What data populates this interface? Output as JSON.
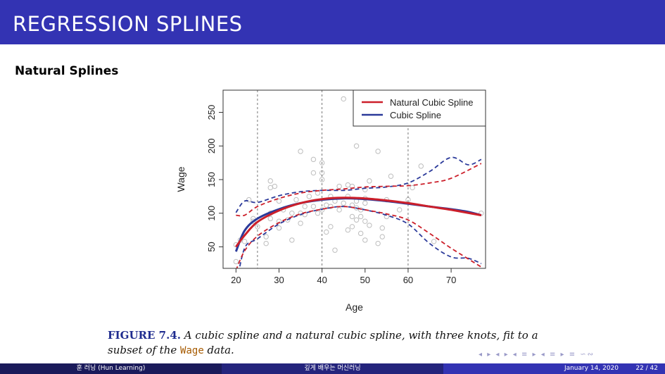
{
  "header": {
    "title": "REGRESSION SPLINES"
  },
  "subtitle": "Natural Splines",
  "chart_data": {
    "type": "line",
    "xlabel": "Age",
    "ylabel": "Wage",
    "xlim": [
      17,
      78
    ],
    "ylim": [
      18,
      283
    ],
    "xticks": [
      20,
      30,
      40,
      50,
      60,
      70
    ],
    "yticks": [
      50,
      100,
      150,
      200,
      250
    ],
    "knots": [
      25,
      40,
      60
    ],
    "legend": {
      "position": "top-right"
    },
    "colors": {
      "natural": "#cc1f2a",
      "cubic": "#2b3a9a",
      "points": "#bdbdbd"
    },
    "series": [
      {
        "name": "Natural Cubic Spline",
        "x": [
          20,
          22,
          25,
          30,
          35,
          40,
          45,
          50,
          55,
          60,
          65,
          70,
          77
        ],
        "fit": [
          50,
          67,
          87,
          104,
          115,
          121,
          123,
          122,
          119,
          115,
          110,
          105,
          97
        ],
        "upper": [
          97,
          97,
          110,
          122,
          130,
          134,
          136,
          139,
          140,
          141,
          145,
          152,
          174
        ],
        "lower": [
          15,
          44,
          66,
          86,
          99,
          106,
          110,
          105,
          99,
          90,
          70,
          48,
          20
        ]
      },
      {
        "name": "Cubic Spline",
        "x": [
          20,
          22,
          25,
          30,
          35,
          40,
          45,
          50,
          55,
          60,
          65,
          70,
          74,
          77
        ],
        "fit": [
          43,
          74,
          92,
          106,
          115,
          120,
          122,
          121,
          118,
          114,
          110,
          106,
          102,
          97
        ],
        "upper": [
          101,
          118,
          116,
          126,
          132,
          134,
          134,
          137,
          139,
          145,
          162,
          183,
          172,
          180
        ],
        "lower": [
          -10,
          48,
          62,
          84,
          98,
          106,
          110,
          105,
          97,
          84,
          55,
          35,
          33,
          25
        ]
      }
    ],
    "points": [
      [
        20,
        28
      ],
      [
        20,
        53
      ],
      [
        21,
        60
      ],
      [
        22,
        58
      ],
      [
        23,
        120
      ],
      [
        24,
        88
      ],
      [
        24,
        92
      ],
      [
        25,
        80
      ],
      [
        27,
        55
      ],
      [
        27,
        65
      ],
      [
        28,
        92
      ],
      [
        28,
        100
      ],
      [
        28,
        138
      ],
      [
        28,
        148
      ],
      [
        29,
        140
      ],
      [
        30,
        78
      ],
      [
        30,
        88
      ],
      [
        30,
        118
      ],
      [
        31,
        105
      ],
      [
        32,
        90
      ],
      [
        33,
        60
      ],
      [
        33,
        100
      ],
      [
        34,
        120
      ],
      [
        35,
        85
      ],
      [
        35,
        100
      ],
      [
        35,
        192
      ],
      [
        36,
        110
      ],
      [
        36,
        98
      ],
      [
        37,
        125
      ],
      [
        38,
        110
      ],
      [
        38,
        160
      ],
      [
        38,
        180
      ],
      [
        39,
        100
      ],
      [
        39,
        130
      ],
      [
        40,
        150
      ],
      [
        40,
        160
      ],
      [
        40,
        175
      ],
      [
        40,
        105
      ],
      [
        41,
        72
      ],
      [
        41,
        112
      ],
      [
        42,
        80
      ],
      [
        42,
        110
      ],
      [
        42,
        125
      ],
      [
        43,
        45
      ],
      [
        43,
        118
      ],
      [
        44,
        105
      ],
      [
        44,
        140
      ],
      [
        45,
        270
      ],
      [
        45,
        115
      ],
      [
        46,
        75
      ],
      [
        46,
        125
      ],
      [
        46,
        142
      ],
      [
        47,
        80
      ],
      [
        47,
        95
      ],
      [
        47,
        112
      ],
      [
        47,
        140
      ],
      [
        48,
        90
      ],
      [
        48,
        108
      ],
      [
        48,
        118
      ],
      [
        48,
        200
      ],
      [
        48,
        278
      ],
      [
        49,
        70
      ],
      [
        49,
        95
      ],
      [
        49,
        105
      ],
      [
        50,
        60
      ],
      [
        50,
        88
      ],
      [
        50,
        115
      ],
      [
        50,
        122
      ],
      [
        50,
        135
      ],
      [
        51,
        82
      ],
      [
        51,
        148
      ],
      [
        51,
        280
      ],
      [
        53,
        55
      ],
      [
        53,
        192
      ],
      [
        54,
        65
      ],
      [
        54,
        78
      ],
      [
        55,
        95
      ],
      [
        55,
        120
      ],
      [
        56,
        155
      ],
      [
        58,
        105
      ],
      [
        60,
        120
      ],
      [
        61,
        138
      ],
      [
        63,
        170
      ],
      [
        66,
        58
      ],
      [
        77,
        100
      ]
    ]
  },
  "caption": {
    "fig_label": "FIGURE 7.4.",
    "text": "A cubic spline and a natural cubic spline, with three knots, fit to a subset of the",
    "code": "Wage",
    "text_end": "data."
  },
  "nav_symbols": "◂ ▸ ◂ ▸ ◂ ≡ ▸ ◂ ≡ ▸ ≡ ∽∾",
  "footer": {
    "author": "훈 러닝 (Hun Learning)",
    "center": "깊게 배우는 머신러닝",
    "date": "January 14, 2020",
    "page": "22 / 42"
  }
}
